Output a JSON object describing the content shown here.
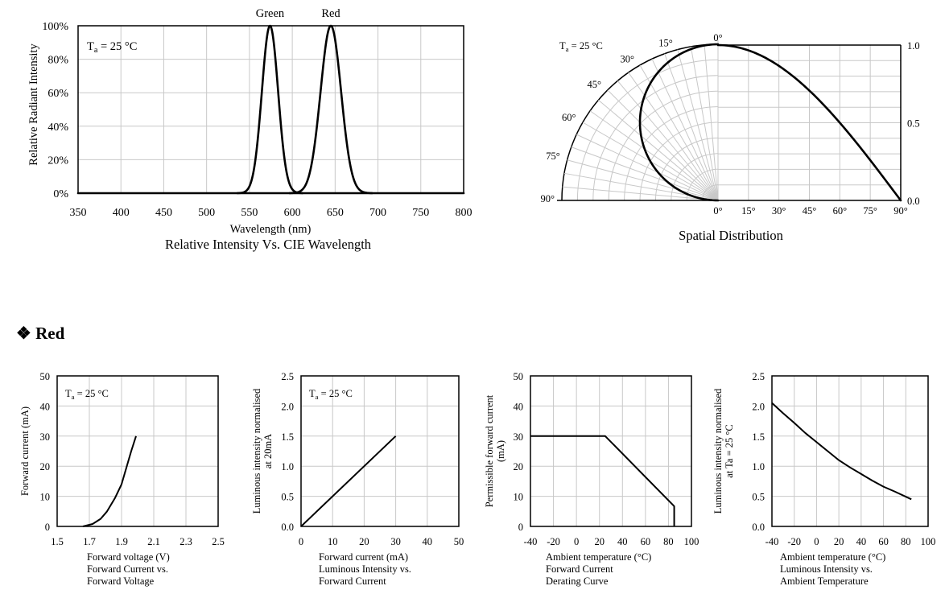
{
  "section": {
    "bullet": "❖",
    "title": "Red"
  },
  "chart_data": [
    {
      "id": "spectrum",
      "type": "line",
      "caption": "Relative Intensity Vs. CIE Wavelength",
      "xlabel": "Wavelength (nm)",
      "ylabel": "Relative Radiant Intensity",
      "annotation": "Ta = 25 °C",
      "xlim": [
        350,
        800
      ],
      "ylim": [
        0,
        100
      ],
      "xticks": [
        "350",
        "400",
        "450",
        "500",
        "550",
        "600",
        "650",
        "700",
        "750",
        "800"
      ],
      "yticks": [
        "0%",
        "20%",
        "40%",
        "60%",
        "80%",
        "100%"
      ],
      "grid": true,
      "series": [
        {
          "name": "Green",
          "peak": 574,
          "sigma": 9.5
        },
        {
          "name": "Red",
          "peak": 645,
          "sigma": 12
        }
      ]
    },
    {
      "id": "spatial",
      "type": "polar",
      "caption": "Spatial Distribution",
      "annotation": "Ta = 25 °C",
      "angle_labels": [
        "0°",
        "15°",
        "30°",
        "45°",
        "60°",
        "75°",
        "90°"
      ],
      "bottom_labels": [
        "0°",
        "15°",
        "30°",
        "45°",
        "60°",
        "75°",
        "90°"
      ],
      "right_labels": [
        "1.0",
        "0.5",
        "0.0"
      ],
      "pattern": {
        "angles": [
          0,
          15,
          30,
          45,
          60,
          75,
          90
        ],
        "values": [
          1.0,
          0.98,
          0.9,
          0.75,
          0.5,
          0.22,
          0.0
        ]
      }
    },
    {
      "id": "iv",
      "type": "line",
      "xlabel": "Forward voltage (V)",
      "caption_lines": [
        "Forward Current vs.",
        "Forward Voltage"
      ],
      "ylabel": "Forward current (mA)",
      "annotation": "Ta = 25 °C",
      "xlim": [
        1.5,
        2.5
      ],
      "ylim": [
        0,
        50
      ],
      "xticks": [
        "1.5",
        "1.7",
        "1.9",
        "2.1",
        "2.3",
        "2.5"
      ],
      "yticks": [
        "0",
        "10",
        "20",
        "30",
        "40",
        "50"
      ],
      "x": [
        1.66,
        1.72,
        1.77,
        1.81,
        1.86,
        1.9,
        1.93,
        1.96,
        1.99
      ],
      "y": [
        0,
        0.8,
        2.5,
        5,
        9.5,
        14,
        19.5,
        25,
        30
      ]
    },
    {
      "id": "lum_if",
      "type": "line",
      "xlabel": "Forward current (mA)",
      "caption_lines": [
        "Luminous Intensity vs.",
        "Forward Current"
      ],
      "ylabel_lines": [
        "Luminous intensity normalised",
        "at 20mA"
      ],
      "annotation": "Ta = 25 °C",
      "xlim": [
        0,
        50
      ],
      "ylim": [
        0,
        2.5
      ],
      "xticks": [
        "0",
        "10",
        "20",
        "30",
        "40",
        "50"
      ],
      "yticks": [
        "0.0",
        "0.5",
        "1.0",
        "1.5",
        "2.0",
        "2.5"
      ],
      "x": [
        0,
        30
      ],
      "y": [
        0,
        1.5
      ]
    },
    {
      "id": "derating",
      "type": "line",
      "xlabel": "Ambient temperature (°C)",
      "caption_lines": [
        "Forward Current",
        "Derating  Curve"
      ],
      "ylabel_lines": [
        "Permissible forward current",
        "(mA)"
      ],
      "xlim": [
        -40,
        100
      ],
      "ylim": [
        0,
        50
      ],
      "xticks": [
        "-40",
        "-20",
        "0",
        "20",
        "40",
        "60",
        "80",
        "100"
      ],
      "yticks": [
        "0",
        "10",
        "20",
        "30",
        "40",
        "50"
      ],
      "x": [
        -40,
        25,
        85,
        85
      ],
      "y": [
        30,
        30,
        6.7,
        0
      ]
    },
    {
      "id": "lum_ta",
      "type": "line",
      "xlabel": "Ambient temperature (°C)",
      "caption_lines": [
        "Luminous Intensity vs.",
        "Ambient Temperature"
      ],
      "ylabel_lines": [
        "Luminous intensity normalised",
        "at Ta = 25 °C"
      ],
      "xlim": [
        -40,
        100
      ],
      "ylim": [
        0,
        2.5
      ],
      "xticks": [
        "-40",
        "-20",
        "0",
        "20",
        "40",
        "60",
        "80",
        "100"
      ],
      "yticks": [
        "0.0",
        "0.5",
        "1.0",
        "1.5",
        "2.0",
        "2.5"
      ],
      "x": [
        -40,
        -30,
        -20,
        -10,
        0,
        10,
        20,
        30,
        40,
        50,
        60,
        70,
        85
      ],
      "y": [
        2.05,
        1.88,
        1.72,
        1.55,
        1.4,
        1.25,
        1.1,
        0.98,
        0.87,
        0.76,
        0.66,
        0.58,
        0.45
      ]
    }
  ]
}
